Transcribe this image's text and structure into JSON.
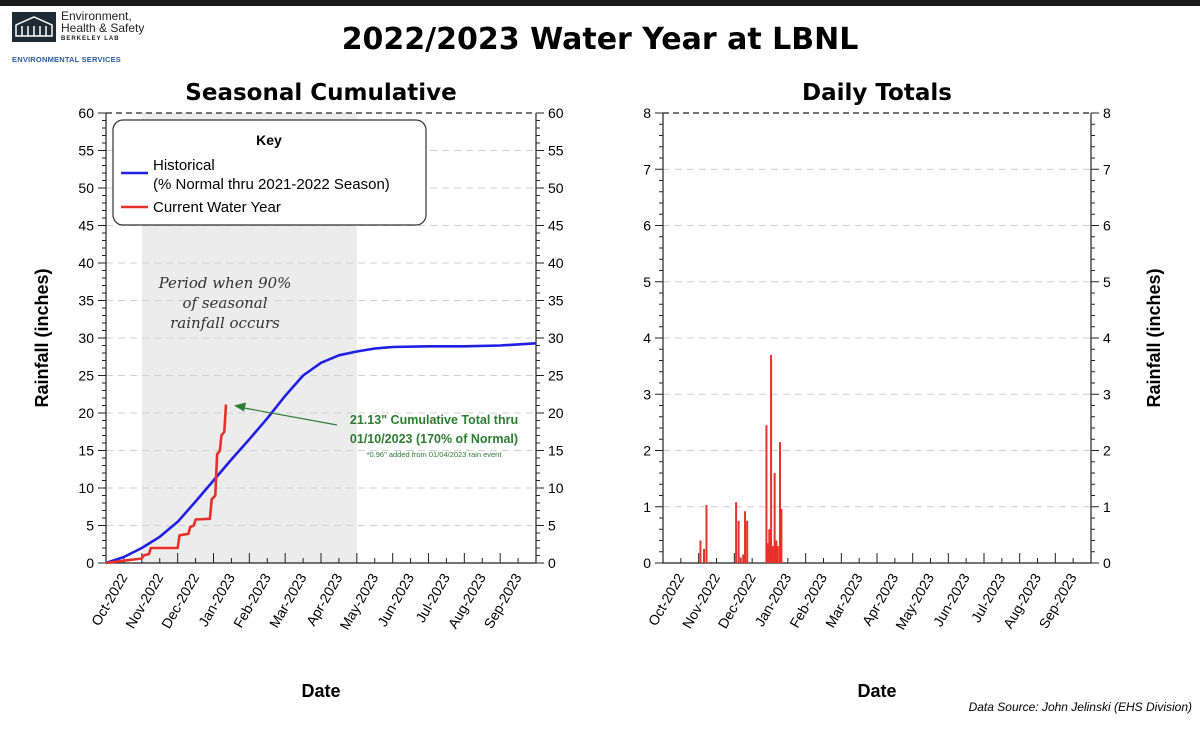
{
  "header": {
    "logo_line1": "Environment,",
    "logo_line2": "Health & Safety",
    "logo_line3": "BERKELEY LAB",
    "logo_line4": "ENVIRONMENTAL SERVICES",
    "title": "2022/2023 Water Year at LBNL",
    "source": "Data Source: John Jelinski (EHS Division)"
  },
  "colors": {
    "historical": "#1f1fe6",
    "current": "#e8302a",
    "annotation": "#2e7d32",
    "shade": "#ececec"
  },
  "chart_data": [
    {
      "type": "line",
      "title": "Seasonal Cumulative",
      "xlabel": "Date",
      "ylabel": "Rainfall (inches)",
      "ylim": [
        0,
        60
      ],
      "yticks": [
        0,
        5,
        10,
        15,
        20,
        25,
        30,
        35,
        40,
        45,
        50,
        55,
        60
      ],
      "xtick_labels": [
        "Oct-2022",
        "Nov-2022",
        "Dec-2022",
        "Jan-2023",
        "Feb-2023",
        "Mar-2023",
        "Apr-2023",
        "May-2023",
        "Jun-2023",
        "Jul-2023",
        "Aug-2023",
        "Sep-2023"
      ],
      "xlim_months": [
        0,
        12
      ],
      "grid": "horizontal dashed",
      "shaded_period": {
        "from": "Nov-2022",
        "to": "May-2023",
        "label": [
          "Period when 90%",
          "of seasonal",
          "rainfall occurs"
        ]
      },
      "legend": {
        "title": "Key",
        "placement": "top-left",
        "entries": [
          {
            "name": "Historical",
            "sub": "(% Normal thru 2021-2022 Season)",
            "color": "#1f1fe6"
          },
          {
            "name": "Current Water Year",
            "color": "#e8302a"
          }
        ]
      },
      "annotation": {
        "line1": "21.13\" Cumulative Total thru",
        "line2": "01/10/2023 (170% of Normal)",
        "note": "*0.96\" added from 01/04/2023 rain event"
      },
      "series": [
        {
          "name": "Historical",
          "color": "#1f1fe6",
          "x": [
            0,
            0.5,
            1,
            1.5,
            2,
            2.5,
            3,
            3.5,
            4,
            4.5,
            5,
            5.5,
            6,
            6.5,
            7,
            7.5,
            8,
            9,
            10,
            11,
            12
          ],
          "y": [
            0,
            0.8,
            2.0,
            3.5,
            5.5,
            8.2,
            11.0,
            13.8,
            16.5,
            19.3,
            22.3,
            25.0,
            26.7,
            27.7,
            28.2,
            28.6,
            28.8,
            28.9,
            28.9,
            29.0,
            29.3
          ]
        },
        {
          "name": "Current Water Year",
          "color": "#e8302a",
          "x": [
            0,
            1.0,
            1.05,
            1.2,
            1.25,
            2.0,
            2.05,
            2.3,
            2.35,
            2.45,
            2.5,
            2.9,
            2.95,
            3.05,
            3.1,
            3.18,
            3.22,
            3.3,
            3.35
          ],
          "y": [
            0,
            0.6,
            1.0,
            1.2,
            2.0,
            2.0,
            3.7,
            3.9,
            4.8,
            5.0,
            5.8,
            5.9,
            8.5,
            9.0,
            14.5,
            15.0,
            17.0,
            17.5,
            21.13
          ]
        }
      ]
    },
    {
      "type": "bar",
      "title": "Daily Totals",
      "xlabel": "Date",
      "ylabel": "Rainfall (inches)",
      "ylim": [
        0,
        8
      ],
      "yticks": [
        0,
        1,
        2,
        3,
        4,
        5,
        6,
        7,
        8
      ],
      "xtick_labels": [
        "Oct-2022",
        "Nov-2022",
        "Dec-2022",
        "Jan-2023",
        "Feb-2023",
        "Mar-2023",
        "Apr-2023",
        "May-2023",
        "Jun-2023",
        "Jul-2023",
        "Aug-2023",
        "Sep-2023"
      ],
      "xlim_months": [
        0,
        12
      ],
      "color": "#e8302a",
      "bars": [
        {
          "x": 1.05,
          "y": 0.4
        },
        {
          "x": 1.15,
          "y": 0.25
        },
        {
          "x": 1.22,
          "y": 1.03
        },
        {
          "x": 1.35,
          "y": 0.02
        },
        {
          "x": 2.05,
          "y": 1.08
        },
        {
          "x": 2.12,
          "y": 0.75
        },
        {
          "x": 2.18,
          "y": 0.1
        },
        {
          "x": 2.25,
          "y": 0.15
        },
        {
          "x": 2.3,
          "y": 0.92
        },
        {
          "x": 2.36,
          "y": 0.75
        },
        {
          "x": 2.9,
          "y": 2.45
        },
        {
          "x": 2.94,
          "y": 0.35
        },
        {
          "x": 2.98,
          "y": 0.6
        },
        {
          "x": 3.03,
          "y": 3.7
        },
        {
          "x": 3.08,
          "y": 0.3
        },
        {
          "x": 3.13,
          "y": 1.6
        },
        {
          "x": 3.18,
          "y": 0.4
        },
        {
          "x": 3.22,
          "y": 0.3
        },
        {
          "x": 3.28,
          "y": 2.15
        },
        {
          "x": 3.32,
          "y": 0.96
        }
      ]
    }
  ]
}
